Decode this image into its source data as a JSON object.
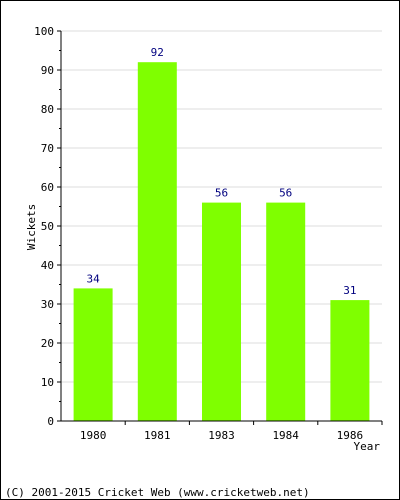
{
  "chart_data": {
    "type": "bar",
    "categories": [
      "1980",
      "1981",
      "1983",
      "1984",
      "1986"
    ],
    "values": [
      34,
      92,
      56,
      56,
      31
    ],
    "data_labels": [
      "34",
      "92",
      "56",
      "56",
      "31"
    ],
    "xlabel": "Year",
    "ylabel": "Wickets",
    "ylim": [
      0,
      100
    ],
    "yticks": [
      0,
      10,
      20,
      30,
      40,
      50,
      60,
      70,
      80,
      90,
      100
    ],
    "ytick_labels": [
      "0",
      "10",
      "20",
      "30",
      "40",
      "50",
      "60",
      "70",
      "80",
      "90",
      "100"
    ],
    "grid": true,
    "bar_color": "#7fff00",
    "label_color": "#00007f",
    "grid_color": "#dddddd"
  },
  "footer": {
    "copyright": "(C) 2001-2015 Cricket Web (www.cricketweb.net)"
  }
}
